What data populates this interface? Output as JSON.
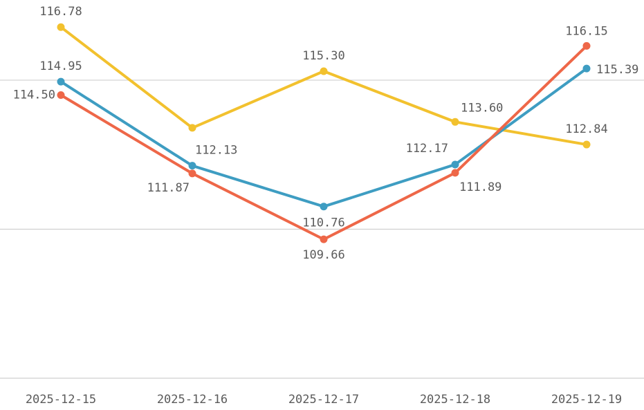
{
  "chart_data": {
    "type": "line",
    "categories": [
      "2025-12-15",
      "2025-12-16",
      "2025-12-17",
      "2025-12-18",
      "2025-12-19"
    ],
    "series": [
      {
        "color": "#f2c12e",
        "values": [
          116.78,
          113.4,
          115.3,
          113.6,
          112.84
        ],
        "value_labels": [
          "116.78",
          null,
          "115.30",
          "113.60",
          "112.84"
        ]
      },
      {
        "color": "#3e9dc2",
        "values": [
          114.95,
          112.13,
          110.76,
          112.17,
          115.39
        ],
        "value_labels": [
          "114.95",
          "112.13",
          "110.76",
          "112.17",
          "115.39"
        ]
      },
      {
        "color": "#ee6748",
        "values": [
          114.5,
          111.87,
          109.66,
          111.89,
          116.15
        ],
        "value_labels": [
          "114.50",
          "111.87",
          "109.66",
          "111.89",
          "116.15"
        ]
      }
    ],
    "ylim": [
      105,
      117.69
    ],
    "yticks": [
      105,
      110,
      115
    ],
    "grid": true
  }
}
